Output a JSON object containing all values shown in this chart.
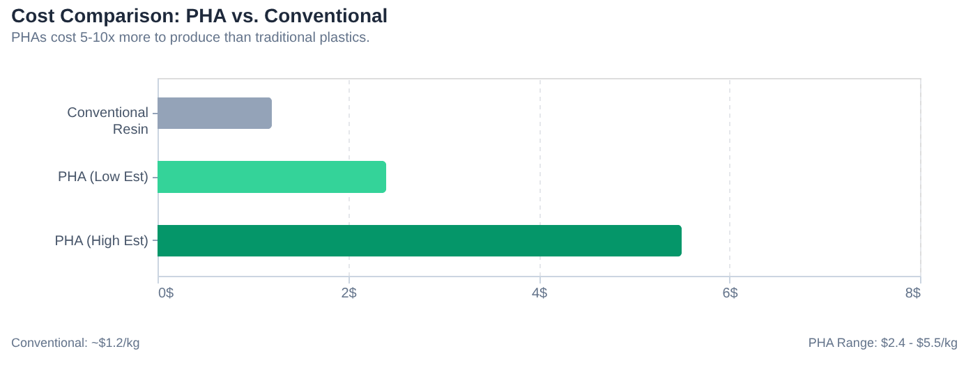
{
  "chart_data": {
    "type": "bar",
    "orientation": "horizontal",
    "title": "Cost Comparison: PHA vs. Conventional",
    "subtitle": "PHAs cost 5-10x more to produce than traditional plastics.",
    "categories": [
      "Conventional Resin",
      "PHA (Low Est)",
      "PHA (High Est)"
    ],
    "values": [
      1.2,
      2.4,
      5.5
    ],
    "colors": [
      "#94a3b8",
      "#34d399",
      "#059669"
    ],
    "xlim": [
      0,
      8
    ],
    "xticks": [
      {
        "value": 0,
        "label": "0$"
      },
      {
        "value": 2,
        "label": "2$"
      },
      {
        "value": 4,
        "label": "4$"
      },
      {
        "value": 6,
        "label": "6$"
      },
      {
        "value": 8,
        "label": "8$"
      }
    ],
    "grid": "x",
    "annotations": [
      "Conventional: ~$1.2/kg",
      "PHA Range: $2.4 - $5.5/kg"
    ]
  }
}
